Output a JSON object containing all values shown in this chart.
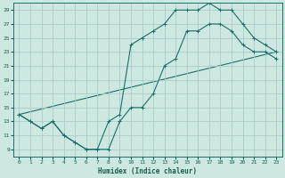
{
  "xlabel": "Humidex (Indice chaleur)",
  "background_color": "#cce8e0",
  "grid_color": "#aacccc",
  "line_color": "#1a6e6a",
  "xlim": [
    -0.5,
    23.5
  ],
  "ylim": [
    8,
    30
  ],
  "xticks": [
    0,
    1,
    2,
    3,
    4,
    5,
    6,
    7,
    8,
    9,
    10,
    11,
    12,
    13,
    14,
    15,
    16,
    17,
    18,
    19,
    20,
    21,
    22,
    23
  ],
  "yticks": [
    9,
    11,
    13,
    15,
    17,
    19,
    21,
    23,
    25,
    27,
    29
  ],
  "line1_x": [
    0,
    1,
    2,
    3,
    4,
    5,
    6,
    7,
    8,
    9,
    10,
    11,
    12,
    13,
    14,
    15,
    16,
    17,
    18,
    19,
    20,
    21,
    22,
    23
  ],
  "line1_y": [
    14,
    13,
    12,
    13,
    11,
    10,
    9,
    9,
    9,
    13,
    15,
    15,
    17,
    21,
    22,
    26,
    26,
    27,
    27,
    26,
    24,
    23,
    23,
    22
  ],
  "line2_x": [
    0,
    1,
    2,
    3,
    4,
    5,
    6,
    7,
    8,
    9,
    10,
    11,
    12,
    13,
    14,
    15,
    16,
    17,
    18,
    19,
    20,
    21,
    22,
    23
  ],
  "line2_y": [
    14,
    13,
    12,
    13,
    11,
    10,
    9,
    9,
    13,
    14,
    24,
    25,
    26,
    27,
    29,
    29,
    29,
    30,
    29,
    29,
    27,
    25,
    24,
    23
  ],
  "line3_x": [
    0,
    23
  ],
  "line3_y": [
    14,
    23
  ]
}
